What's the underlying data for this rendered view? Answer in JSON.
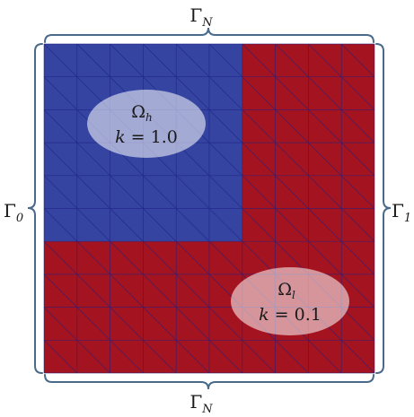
{
  "boundaries": {
    "top": {
      "symbol": "Γ",
      "sub": "N"
    },
    "bottom": {
      "symbol": "Γ",
      "sub": "N"
    },
    "left": {
      "symbol": "Γ",
      "sub": "0"
    },
    "right": {
      "symbol": "Γ",
      "sub": "1"
    }
  },
  "regions": {
    "high": {
      "symbol": "Ω",
      "sub": "h",
      "k_var": "k",
      "k_rest": " = 1.0",
      "color": "#3444a0"
    },
    "low": {
      "symbol": "Ω",
      "sub": "l",
      "k_var": "k",
      "k_rest": " = 0.1",
      "color": "#a31420"
    }
  },
  "mesh": {
    "divisions": 10,
    "line_color": "#1c1f86"
  }
}
